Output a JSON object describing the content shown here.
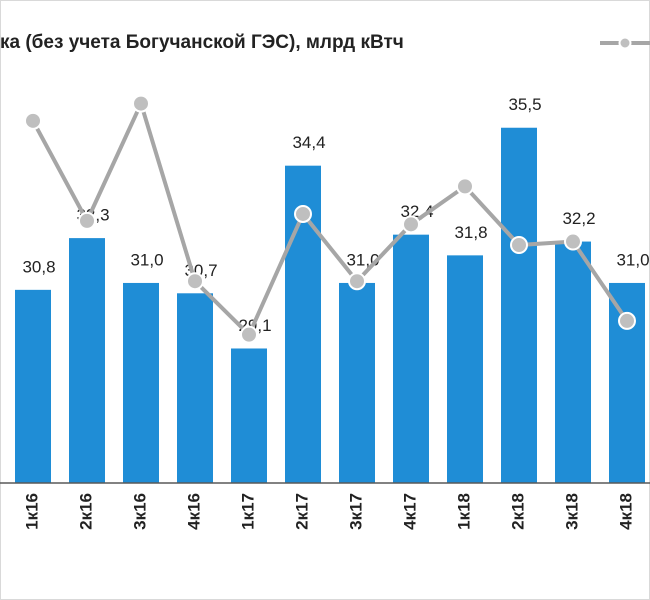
{
  "chart_data": {
    "type": "bar_line",
    "title": "ка (без учета Богучанской ГЭС), млрд кВтч",
    "categories": [
      "1к16",
      "2к16",
      "3к16",
      "4к16",
      "1к17",
      "2к17",
      "3к17",
      "4к17",
      "1к18",
      "2к18",
      "3к18",
      "4к18"
    ],
    "series": [
      {
        "type": "bar",
        "color": "#1f8dd6",
        "values": [
          30.8,
          32.3,
          31.0,
          30.7,
          29.1,
          34.4,
          31.0,
          32.4,
          31.8,
          35.5,
          32.2,
          31.0
        ],
        "value_labels": [
          "30,8",
          "32,3",
          "31,0",
          "30,7",
          "29,1",
          "34,4",
          "31,0",
          "32,4",
          "31,8",
          "35,5",
          "32,2",
          "31,0"
        ]
      },
      {
        "type": "line",
        "color": "#a6a6a6",
        "values": [
          35.7,
          32.8,
          36.2,
          31.05,
          29.5,
          33.0,
          31.05,
          32.7,
          33.8,
          32.1,
          32.2,
          29.9
        ]
      }
    ],
    "ylim": [
      25.2,
      37
    ]
  }
}
